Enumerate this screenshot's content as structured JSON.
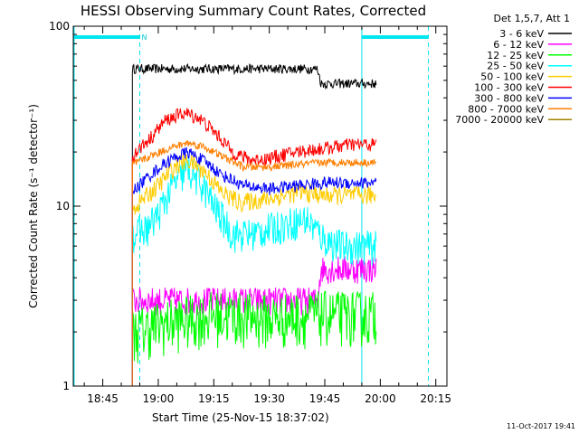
{
  "chart_data": {
    "type": "line",
    "title": "HESSI Observing Summary Count Rates, Corrected",
    "xlabel": "Start Time (25-Nov-15 18:37:02)",
    "ylabel": "Corrected Count Rate (s⁻¹ detector⁻¹)",
    "y_scale": "log",
    "ylim": [
      1,
      100
    ],
    "y_ticks": [
      "1",
      "10",
      "100"
    ],
    "x_ticks": [
      "18:45",
      "19:00",
      "19:15",
      "19:30",
      "19:45",
      "20:00",
      "20:15"
    ],
    "xlim": [
      "18:37:02",
      "20:18:00"
    ],
    "legend_header": "Det 1,5,7, Att 1",
    "legend_placement": "right, outside plot",
    "timestamp": "11-Oct-2017 19:41",
    "flags": [
      {
        "label": "N",
        "start": "18:37:02",
        "end": "18:55:00"
      },
      {
        "label": "",
        "start": "19:55:00",
        "end": "20:13:00"
      }
    ],
    "data_window": [
      "18:53:00",
      "19:59:30"
    ],
    "series": [
      {
        "name": "3 - 6 keV",
        "color": "#000000",
        "points": [
          [
            "18:53",
            58
          ],
          [
            "19:00",
            58
          ],
          [
            "19:15",
            58
          ],
          [
            "19:30",
            58
          ],
          [
            "19:43",
            58
          ],
          [
            "19:44",
            48
          ],
          [
            "19:55",
            48
          ],
          [
            "19:59",
            48
          ]
        ]
      },
      {
        "name": "6 - 12 keV",
        "color": "#ff00ff",
        "points": [
          [
            "18:53",
            3.0
          ],
          [
            "19:00",
            3.0
          ],
          [
            "19:15",
            3.0
          ],
          [
            "19:30",
            3.0
          ],
          [
            "19:43",
            3.0
          ],
          [
            "19:44",
            4.5
          ],
          [
            "19:59",
            4.5
          ]
        ]
      },
      {
        "name": "12 - 25 keV",
        "color": "#00ff00",
        "points": [
          [
            "18:53",
            2.0
          ],
          [
            "19:00",
            2.2
          ],
          [
            "19:15",
            2.5
          ],
          [
            "19:30",
            2.4
          ],
          [
            "19:45",
            2.5
          ],
          [
            "19:59",
            2.5
          ]
        ]
      },
      {
        "name": "25 - 50 keV",
        "color": "#00ffff",
        "points": [
          [
            "18:53",
            7.0
          ],
          [
            "18:57",
            7.5
          ],
          [
            "19:00",
            9
          ],
          [
            "19:04",
            13
          ],
          [
            "19:08",
            16
          ],
          [
            "19:12",
            13
          ],
          [
            "19:15",
            10
          ],
          [
            "19:20",
            7
          ],
          [
            "19:25",
            7
          ],
          [
            "19:30",
            7.5
          ],
          [
            "19:35",
            8
          ],
          [
            "19:40",
            8.5
          ],
          [
            "19:45",
            6.5
          ],
          [
            "19:50",
            6
          ],
          [
            "19:55",
            6
          ],
          [
            "19:59",
            6
          ]
        ]
      },
      {
        "name": "50 - 100 keV",
        "color": "#ffcc00",
        "points": [
          [
            "18:53",
            9.5
          ],
          [
            "19:00",
            13
          ],
          [
            "19:05",
            17
          ],
          [
            "19:08",
            18
          ],
          [
            "19:12",
            16
          ],
          [
            "19:17",
            12
          ],
          [
            "19:22",
            10.5
          ],
          [
            "19:30",
            11
          ],
          [
            "19:38",
            12
          ],
          [
            "19:45",
            11.5
          ],
          [
            "19:52",
            11.5
          ],
          [
            "19:59",
            11.5
          ]
        ]
      },
      {
        "name": "100 - 300 keV",
        "color": "#ff0000",
        "points": [
          [
            "18:53",
            19
          ],
          [
            "18:58",
            24
          ],
          [
            "19:02",
            30
          ],
          [
            "19:07",
            33
          ],
          [
            "19:11",
            31
          ],
          [
            "19:15",
            26
          ],
          [
            "19:20",
            20
          ],
          [
            "19:25",
            18
          ],
          [
            "19:30",
            18.5
          ],
          [
            "19:37",
            20
          ],
          [
            "19:45",
            21
          ],
          [
            "19:52",
            22
          ],
          [
            "19:59",
            22
          ]
        ]
      },
      {
        "name": "300 - 800 keV",
        "color": "#0000ff",
        "points": [
          [
            "18:53",
            12
          ],
          [
            "18:58",
            15
          ],
          [
            "19:03",
            18
          ],
          [
            "19:08",
            20
          ],
          [
            "19:12",
            18
          ],
          [
            "19:17",
            15
          ],
          [
            "19:23",
            13
          ],
          [
            "19:30",
            12.5
          ],
          [
            "19:37",
            13
          ],
          [
            "19:45",
            13.5
          ],
          [
            "19:52",
            13.5
          ],
          [
            "19:59",
            13.5
          ]
        ]
      },
      {
        "name": "800 - 7000 keV",
        "color": "#ff7f00",
        "points": [
          [
            "18:53",
            17
          ],
          [
            "18:58",
            19
          ],
          [
            "19:03",
            21
          ],
          [
            "19:08",
            22.5
          ],
          [
            "19:12",
            21.5
          ],
          [
            "19:17",
            19
          ],
          [
            "19:23",
            16.5
          ],
          [
            "19:30",
            16.5
          ],
          [
            "19:37",
            17
          ],
          [
            "19:45",
            17.5
          ],
          [
            "19:52",
            17.5
          ],
          [
            "19:59",
            17.5
          ]
        ]
      },
      {
        "name": "7000 - 20000 keV",
        "color": "#a08000",
        "points": [
          [
            "19:04",
            1.0
          ],
          [
            "19:05",
            1.0
          ],
          [
            "19:06",
            1.0
          ],
          [
            "19:07",
            1.0
          ]
        ]
      }
    ]
  }
}
